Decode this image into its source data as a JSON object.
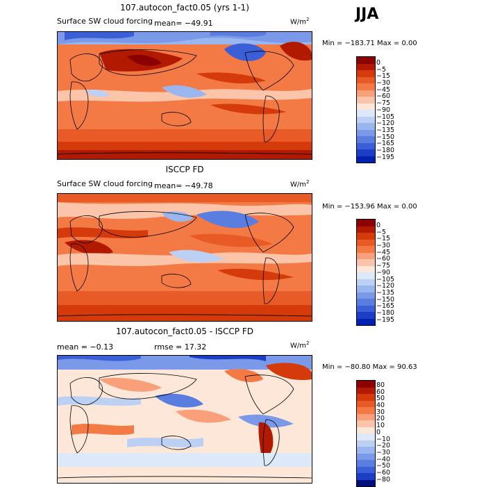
{
  "season": "JJA",
  "units": {
    "base": "W/m",
    "exp": "2"
  },
  "panels": [
    {
      "title": "107.autocon_fact0.05 (yrs 1-1)",
      "subtitle_left": "Surface SW cloud forcing",
      "mean_text": "mean= −49.91",
      "minmax": "Min = −183.71  Max =    0.00",
      "legend_colors": [
        "#8b0000",
        "#b21a00",
        "#d43a0a",
        "#e85a26",
        "#f47a45",
        "#f9a07a",
        "#fcc4a8",
        "#fde7d8",
        "#dde8f8",
        "#bcd0f4",
        "#9ab6ee",
        "#7a99e8",
        "#5a7de0",
        "#3a5fd6",
        "#1a3fc6",
        "#0020b0",
        "#00107a"
      ],
      "legend_labels": [
        "0",
        "−5",
        "−15",
        "−30",
        "−45",
        "−60",
        "−75",
        "−90",
        "−105",
        "−120",
        "−135",
        "−150",
        "−165",
        "−180",
        "−195"
      ]
    },
    {
      "title": "ISCCP FD",
      "subtitle_left": "Surface SW cloud forcing",
      "mean_text": "mean= −49.78",
      "minmax": "Min = −153.96  Max =    0.00",
      "legend_colors": [
        "#8b0000",
        "#b21a00",
        "#d43a0a",
        "#e85a26",
        "#f47a45",
        "#f9a07a",
        "#fcc4a8",
        "#fde7d8",
        "#dde8f8",
        "#bcd0f4",
        "#9ab6ee",
        "#7a99e8",
        "#5a7de0",
        "#3a5fd6",
        "#1a3fc6",
        "#0020b0",
        "#00107a"
      ],
      "legend_labels": [
        "0",
        "−5",
        "−15",
        "−30",
        "−45",
        "−60",
        "−75",
        "−90",
        "−105",
        "−120",
        "−135",
        "−150",
        "−165",
        "−180",
        "−195"
      ]
    },
    {
      "title": "107.autocon_fact0.05 - ISCCP FD",
      "mean_text": "mean =   −0.13",
      "rmse_text": "rmse =   17.32",
      "minmax": "Min = −80.80  Max =   90.63",
      "legend_colors": [
        "#8b0000",
        "#b21a00",
        "#d43a0a",
        "#e85a26",
        "#f47a45",
        "#f9a07a",
        "#fcc4a8",
        "#fde7d8",
        "#dde8f8",
        "#bcd0f4",
        "#9ab6ee",
        "#7a99e8",
        "#5a7de0",
        "#3a5fd6",
        "#1a3fc6",
        "#0020b0",
        "#00107a"
      ],
      "legend_labels": [
        "80",
        "60",
        "50",
        "40",
        "30",
        "20",
        "10",
        "0",
        "−10",
        "−20",
        "−30",
        "−40",
        "−50",
        "−60",
        "−80"
      ]
    }
  ]
}
